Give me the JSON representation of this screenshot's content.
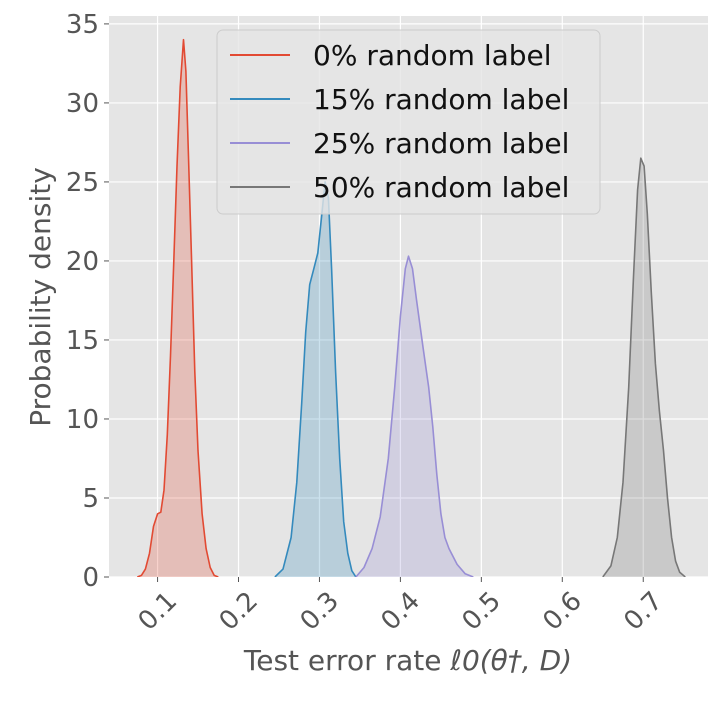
{
  "chart_data": {
    "type": "area",
    "xlabel": "Test error rate ",
    "xlabel_math": "ℓ0(θ†, D)",
    "ylabel": "Probability density",
    "xlim": [
      0.04,
      0.78
    ],
    "ylim": [
      0,
      35.5
    ],
    "xticks": [
      0.1,
      0.2,
      0.3,
      0.4,
      0.5,
      0.6,
      0.7
    ],
    "xtick_labels": [
      "0.1",
      "0.2",
      "0.3",
      "0.4",
      "0.5",
      "0.6",
      "0.7"
    ],
    "yticks": [
      0,
      5,
      10,
      15,
      20,
      25,
      30,
      35
    ],
    "ytick_labels": [
      "0",
      "5",
      "10",
      "15",
      "20",
      "25",
      "30",
      "35"
    ],
    "grid": true,
    "legend_position": "top-center",
    "series": [
      {
        "name": "0% random label",
        "color": "#E24A33",
        "points": [
          [
            0.075,
            0
          ],
          [
            0.08,
            0.1
          ],
          [
            0.085,
            0.5
          ],
          [
            0.09,
            1.5
          ],
          [
            0.095,
            3.2
          ],
          [
            0.1,
            4.0
          ],
          [
            0.104,
            4.1
          ],
          [
            0.108,
            5.5
          ],
          [
            0.112,
            9
          ],
          [
            0.116,
            14
          ],
          [
            0.12,
            20
          ],
          [
            0.124,
            26
          ],
          [
            0.128,
            31
          ],
          [
            0.132,
            34
          ],
          [
            0.135,
            32
          ],
          [
            0.138,
            27
          ],
          [
            0.142,
            20
          ],
          [
            0.146,
            13
          ],
          [
            0.15,
            8
          ],
          [
            0.155,
            4
          ],
          [
            0.16,
            1.8
          ],
          [
            0.165,
            0.6
          ],
          [
            0.17,
            0.1
          ],
          [
            0.175,
            0
          ]
        ]
      },
      {
        "name": "15% random label",
        "color": "#348ABD",
        "points": [
          [
            0.245,
            0
          ],
          [
            0.255,
            0.5
          ],
          [
            0.265,
            2.5
          ],
          [
            0.272,
            6
          ],
          [
            0.278,
            11
          ],
          [
            0.283,
            15.5
          ],
          [
            0.288,
            18.5
          ],
          [
            0.293,
            19.5
          ],
          [
            0.298,
            20.5
          ],
          [
            0.303,
            23
          ],
          [
            0.307,
            25
          ],
          [
            0.311,
            24
          ],
          [
            0.315,
            19.5
          ],
          [
            0.32,
            13
          ],
          [
            0.325,
            7.5
          ],
          [
            0.33,
            3.5
          ],
          [
            0.335,
            1.5
          ],
          [
            0.34,
            0.4
          ],
          [
            0.345,
            0
          ]
        ]
      },
      {
        "name": "25% random label",
        "color": "#988ED5",
        "points": [
          [
            0.345,
            0
          ],
          [
            0.355,
            0.6
          ],
          [
            0.365,
            1.8
          ],
          [
            0.375,
            3.8
          ],
          [
            0.385,
            7.5
          ],
          [
            0.393,
            12
          ],
          [
            0.4,
            16.5
          ],
          [
            0.406,
            19.5
          ],
          [
            0.41,
            20.3
          ],
          [
            0.415,
            19.5
          ],
          [
            0.42,
            17.5
          ],
          [
            0.428,
            14.5
          ],
          [
            0.435,
            12
          ],
          [
            0.44,
            9.5
          ],
          [
            0.445,
            6.5
          ],
          [
            0.45,
            4
          ],
          [
            0.455,
            2.5
          ],
          [
            0.46,
            1.8
          ],
          [
            0.47,
            0.8
          ],
          [
            0.48,
            0.2
          ],
          [
            0.49,
            0
          ]
        ]
      },
      {
        "name": "50% random label",
        "color": "#777777",
        "points": [
          [
            0.65,
            0
          ],
          [
            0.66,
            0.7
          ],
          [
            0.668,
            2.5
          ],
          [
            0.675,
            6
          ],
          [
            0.682,
            12
          ],
          [
            0.688,
            19
          ],
          [
            0.693,
            24.5
          ],
          [
            0.697,
            26.5
          ],
          [
            0.701,
            26
          ],
          [
            0.705,
            23
          ],
          [
            0.71,
            18
          ],
          [
            0.715,
            13.5
          ],
          [
            0.72,
            10.5
          ],
          [
            0.725,
            8
          ],
          [
            0.73,
            5
          ],
          [
            0.735,
            2.5
          ],
          [
            0.74,
            1
          ],
          [
            0.745,
            0.3
          ],
          [
            0.752,
            0
          ]
        ]
      }
    ]
  }
}
